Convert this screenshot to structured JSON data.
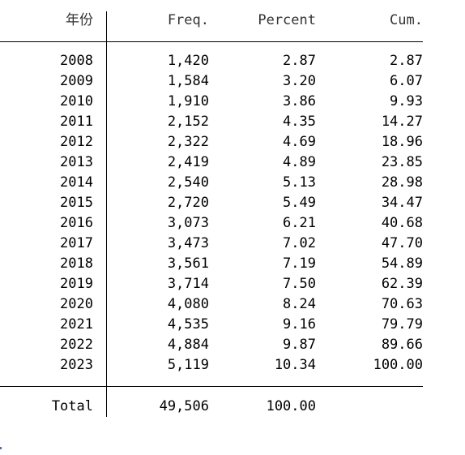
{
  "table": {
    "headers": {
      "var": "年份",
      "freq": "Freq.",
      "percent": "Percent",
      "cum": "Cum."
    },
    "rows": [
      {
        "year": "2008",
        "freq": "1,420",
        "percent": "2.87",
        "cum": "2.87"
      },
      {
        "year": "2009",
        "freq": "1,584",
        "percent": "3.20",
        "cum": "6.07"
      },
      {
        "year": "2010",
        "freq": "1,910",
        "percent": "3.86",
        "cum": "9.93"
      },
      {
        "year": "2011",
        "freq": "2,152",
        "percent": "4.35",
        "cum": "14.27"
      },
      {
        "year": "2012",
        "freq": "2,322",
        "percent": "4.69",
        "cum": "18.96"
      },
      {
        "year": "2013",
        "freq": "2,419",
        "percent": "4.89",
        "cum": "23.85"
      },
      {
        "year": "2014",
        "freq": "2,540",
        "percent": "5.13",
        "cum": "28.98"
      },
      {
        "year": "2015",
        "freq": "2,720",
        "percent": "5.49",
        "cum": "34.47"
      },
      {
        "year": "2016",
        "freq": "3,073",
        "percent": "6.21",
        "cum": "40.68"
      },
      {
        "year": "2017",
        "freq": "3,473",
        "percent": "7.02",
        "cum": "47.70"
      },
      {
        "year": "2018",
        "freq": "3,561",
        "percent": "7.19",
        "cum": "54.89"
      },
      {
        "year": "2019",
        "freq": "3,714",
        "percent": "7.50",
        "cum": "62.39"
      },
      {
        "year": "2020",
        "freq": "4,080",
        "percent": "8.24",
        "cum": "70.63"
      },
      {
        "year": "2021",
        "freq": "4,535",
        "percent": "9.16",
        "cum": "79.79"
      },
      {
        "year": "2022",
        "freq": "4,884",
        "percent": "9.87",
        "cum": "89.66"
      },
      {
        "year": "2023",
        "freq": "5,119",
        "percent": "10.34",
        "cum": "100.00"
      }
    ],
    "total": {
      "label": "Total",
      "freq": "49,506",
      "percent": "100.00"
    }
  }
}
